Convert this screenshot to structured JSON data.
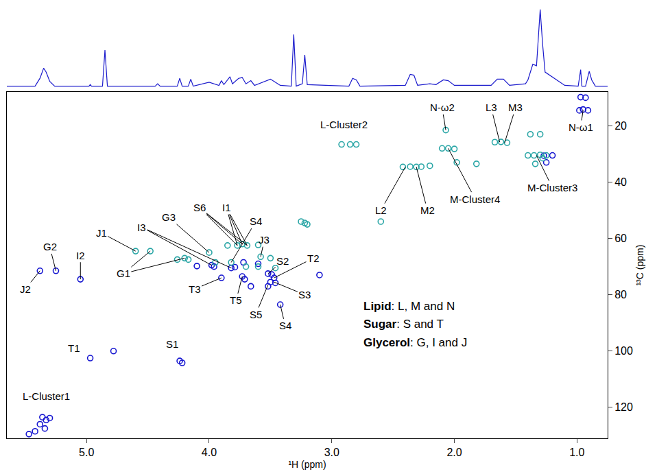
{
  "chart_data": [
    {
      "type": "line",
      "color": "#1a1acc",
      "tick_labels": false,
      "xlim": [
        5.65,
        0.75
      ],
      "ylim": [
        0,
        1.05
      ],
      "x": [
        5.65,
        5.42,
        5.38,
        5.35,
        5.33,
        5.3,
        5.26,
        4.98,
        4.97,
        4.96,
        4.87,
        4.85,
        4.83,
        4.44,
        4.42,
        4.4,
        4.26,
        4.24,
        4.22,
        4.17,
        4.15,
        4.13,
        4.0,
        3.92,
        3.9,
        3.88,
        3.83,
        3.81,
        3.76,
        3.73,
        3.7,
        3.66,
        3.63,
        3.55,
        3.5,
        3.47,
        3.42,
        3.33,
        3.31,
        3.29,
        3.24,
        3.22,
        3.2,
        2.86,
        2.83,
        2.8,
        2.77,
        2.4,
        2.36,
        2.33,
        2.3,
        2.2,
        2.15,
        2.09,
        2.05,
        2.0,
        1.7,
        1.65,
        1.6,
        1.55,
        1.42,
        1.4,
        1.36,
        1.33,
        1.3,
        1.28,
        1.26,
        1.1,
        0.99,
        0.97,
        0.96,
        0.93,
        0.9,
        0.88,
        0.85,
        0.75
      ],
      "values": [
        0.02,
        0.02,
        0.12,
        0.25,
        0.2,
        0.08,
        0.02,
        0.02,
        0.04,
        0.02,
        0.02,
        0.48,
        0.02,
        0.02,
        0.05,
        0.02,
        0.02,
        0.12,
        0.02,
        0.02,
        0.11,
        0.02,
        0.07,
        0.03,
        0.09,
        0.04,
        0.14,
        0.05,
        0.12,
        0.13,
        0.05,
        0.09,
        0.03,
        0.08,
        0.11,
        0.08,
        0.03,
        0.02,
        0.68,
        0.02,
        0.05,
        0.42,
        0.04,
        0.02,
        0.12,
        0.1,
        0.02,
        0.03,
        0.17,
        0.16,
        0.03,
        0.05,
        0.04,
        0.1,
        0.09,
        0.03,
        0.03,
        0.11,
        0.11,
        0.03,
        0.05,
        0.1,
        0.3,
        0.28,
        1.0,
        0.55,
        0.2,
        0.03,
        0.02,
        0.23,
        0.02,
        0.02,
        0.21,
        0.1,
        0.02,
        0.02
      ]
    },
    {
      "type": "scatter",
      "x_label": "¹H (ppm)",
      "y_label": "¹³C (ppm)",
      "xlim": [
        5.65,
        0.75
      ],
      "xticks": [
        {
          "value": 5,
          "label": "5.0"
        },
        {
          "value": 4,
          "label": "4.0"
        },
        {
          "value": 3,
          "label": "3.0"
        },
        {
          "value": 2,
          "label": "2.0"
        },
        {
          "value": 1,
          "label": "1.0"
        }
      ],
      "ylim": [
        131,
        8
      ],
      "yticks": [
        20,
        40,
        60,
        80,
        100,
        120
      ],
      "marker": "circle-open",
      "series": [
        {
          "color": "#1515d0",
          "x": [
            5.38,
            5.25,
            5.05,
            4.97,
            4.78,
            4.24,
            4.22,
            5.36,
            5.33,
            5.3,
            5.38,
            5.34,
            5.42,
            5.47,
            3.98,
            3.96,
            4.1,
            3.82,
            3.79,
            3.72,
            3.9,
            3.73,
            3.71,
            3.52,
            3.49,
            3.47,
            3.5,
            3.46,
            3.52,
            3.42,
            3.1,
            3.6,
            3.66,
            0.98,
            0.95,
            0.91,
            0.97,
            0.93,
            1.27,
            1.2,
            1.25
          ],
          "values": [
            71.5,
            71.5,
            74.5,
            102.5,
            100,
            103.5,
            104.2,
            123.5,
            124.5,
            123.8,
            126,
            127.5,
            128.5,
            129.5,
            69.5,
            70,
            69.8,
            70.5,
            70.2,
            68.5,
            74,
            73.5,
            74.5,
            72.5,
            72.8,
            74,
            75.5,
            75.8,
            77,
            83.5,
            73,
            69,
            77,
            14.5,
            14.2,
            14.5,
            9.8,
            10,
            30.6,
            30.5,
            33
          ]
        },
        {
          "color": "#2aa6a6",
          "x": [
            2.92,
            2.85,
            2.8,
            2.42,
            2.36,
            2.31,
            2.27,
            2.2,
            2.1,
            2.05,
            2.0,
            2.07,
            1.98,
            1.82,
            1.67,
            1.62,
            1.57,
            1.4,
            1.35,
            1.3,
            1.25,
            1.38,
            1.3,
            1.28,
            1.34,
            3.85,
            3.77,
            3.73,
            3.69,
            3.6,
            4.0,
            4.6,
            4.48,
            4.2,
            4.17,
            3.95,
            3.58,
            3.6,
            3.5,
            3.46,
            3.82,
            3.22,
            3.25,
            3.2,
            2.6,
            3.7,
            4.26
          ],
          "values": [
            26.6,
            26.6,
            26.6,
            34.6,
            34.5,
            34.6,
            34.5,
            34.2,
            28,
            28,
            28.2,
            21.5,
            33,
            33.5,
            25.8,
            25.7,
            26,
            30.5,
            30.5,
            30.3,
            30.5,
            23,
            23,
            31.5,
            33.5,
            62.5,
            62.5,
            62,
            62.5,
            62.3,
            65,
            64.5,
            64.5,
            67,
            67.5,
            68.5,
            66.5,
            70,
            67,
            70.5,
            68.5,
            54.5,
            54,
            55,
            54,
            70,
            67.5
          ]
        }
      ],
      "annotations": [
        {
          "text": "J2",
          "x": 5.5,
          "y": 78,
          "targets": [
            [
              5.38,
              71.5
            ]
          ]
        },
        {
          "text": "G2",
          "x": 5.3,
          "y": 63,
          "targets": [
            [
              5.25,
              71.5
            ]
          ]
        },
        {
          "text": "I2",
          "x": 5.05,
          "y": 66,
          "targets": [
            [
              5.05,
              74.5
            ]
          ]
        },
        {
          "text": "J1",
          "x": 4.88,
          "y": 58,
          "targets": [
            [
              4.6,
              64.5
            ]
          ]
        },
        {
          "text": "G1",
          "x": 4.7,
          "y": 72.5,
          "targets": [
            [
              4.48,
              64.5
            ],
            [
              4.2,
              67
            ]
          ]
        },
        {
          "text": "I3",
          "x": 4.55,
          "y": 56,
          "targets": [
            [
              3.98,
              69.5
            ],
            [
              3.82,
              70.5
            ]
          ]
        },
        {
          "text": "G3",
          "x": 4.33,
          "y": 52.5,
          "targets": [
            [
              4.0,
              65
            ]
          ]
        },
        {
          "text": "S6",
          "x": 4.08,
          "y": 49,
          "targets": [
            [
              3.77,
              62.5
            ],
            [
              3.73,
              62
            ],
            [
              3.69,
              62.5
            ]
          ]
        },
        {
          "text": "I1",
          "x": 3.86,
          "y": 49,
          "targets": [
            [
              3.77,
              62.5
            ],
            [
              3.73,
              62
            ],
            [
              3.69,
              62.5
            ]
          ]
        },
        {
          "text": "S4",
          "x": 3.62,
          "y": 54,
          "targets": [
            [
              3.82,
              68.5
            ]
          ]
        },
        {
          "text": "J3",
          "x": 3.55,
          "y": 60.5,
          "targets": [
            [
              3.58,
              66.5
            ]
          ]
        },
        {
          "text": "S2",
          "x": 3.4,
          "y": 68,
          "targets": [
            [
              3.52,
              72.5
            ]
          ]
        },
        {
          "text": "T2",
          "x": 3.15,
          "y": 67,
          "targets": [
            [
              3.47,
              74
            ]
          ]
        },
        {
          "text": "S3",
          "x": 3.22,
          "y": 80,
          "targets": [
            [
              3.47,
              75.5
            ]
          ]
        },
        {
          "text": "S4",
          "x": 3.38,
          "y": 91,
          "targets": [
            [
              3.42,
              83.5
            ]
          ]
        },
        {
          "text": "S5",
          "x": 3.62,
          "y": 87,
          "targets": [
            [
              3.52,
              76.5
            ]
          ]
        },
        {
          "text": "T5",
          "x": 3.78,
          "y": 82,
          "targets": [
            [
              3.73,
              73.5
            ]
          ]
        },
        {
          "text": "T3",
          "x": 4.12,
          "y": 78,
          "targets": [
            [
              3.9,
              74
            ]
          ]
        },
        {
          "text": "T1",
          "x": 5.1,
          "y": 99
        },
        {
          "text": "S1",
          "x": 4.3,
          "y": 97.5
        },
        {
          "text": "L-Cluster1",
          "x": 5.33,
          "y": 116
        },
        {
          "text": "L-Cluster2",
          "x": 2.9,
          "y": 19.5
        },
        {
          "text": "L2",
          "x": 2.6,
          "y": 50,
          "targets": [
            [
              2.4,
              34.6
            ]
          ]
        },
        {
          "text": "M2",
          "x": 2.22,
          "y": 50,
          "targets": [
            [
              2.31,
              34.6
            ]
          ]
        },
        {
          "text": "N-ω2",
          "x": 2.1,
          "y": 13.5,
          "targets": [
            [
              2.07,
              21.5
            ]
          ]
        },
        {
          "text": "M-Cluster4",
          "x": 1.83,
          "y": 46,
          "targets": [
            [
              2.05,
              28
            ]
          ]
        },
        {
          "text": "L3",
          "x": 1.7,
          "y": 13.5,
          "targets": [
            [
              1.63,
              25.8
            ]
          ]
        },
        {
          "text": "M3",
          "x": 1.5,
          "y": 13.5,
          "targets": [
            [
              1.59,
              26
            ]
          ]
        },
        {
          "text": "M-Cluster3",
          "x": 1.2,
          "y": 42,
          "targets": [
            [
              1.33,
              30.5
            ]
          ]
        },
        {
          "text": "N-ω1",
          "x": 0.97,
          "y": 20.5,
          "targets": [
            [
              0.95,
              14.4
            ]
          ]
        },
        {
          "text": "Lipid: L, M and N",
          "x": 2.75,
          "y": 84
        },
        {
          "text": "Sugar: S and T",
          "x": 2.75,
          "y": 90.5
        },
        {
          "text": "Glycerol: G, I and J",
          "x": 2.75,
          "y": 97
        }
      ]
    }
  ]
}
